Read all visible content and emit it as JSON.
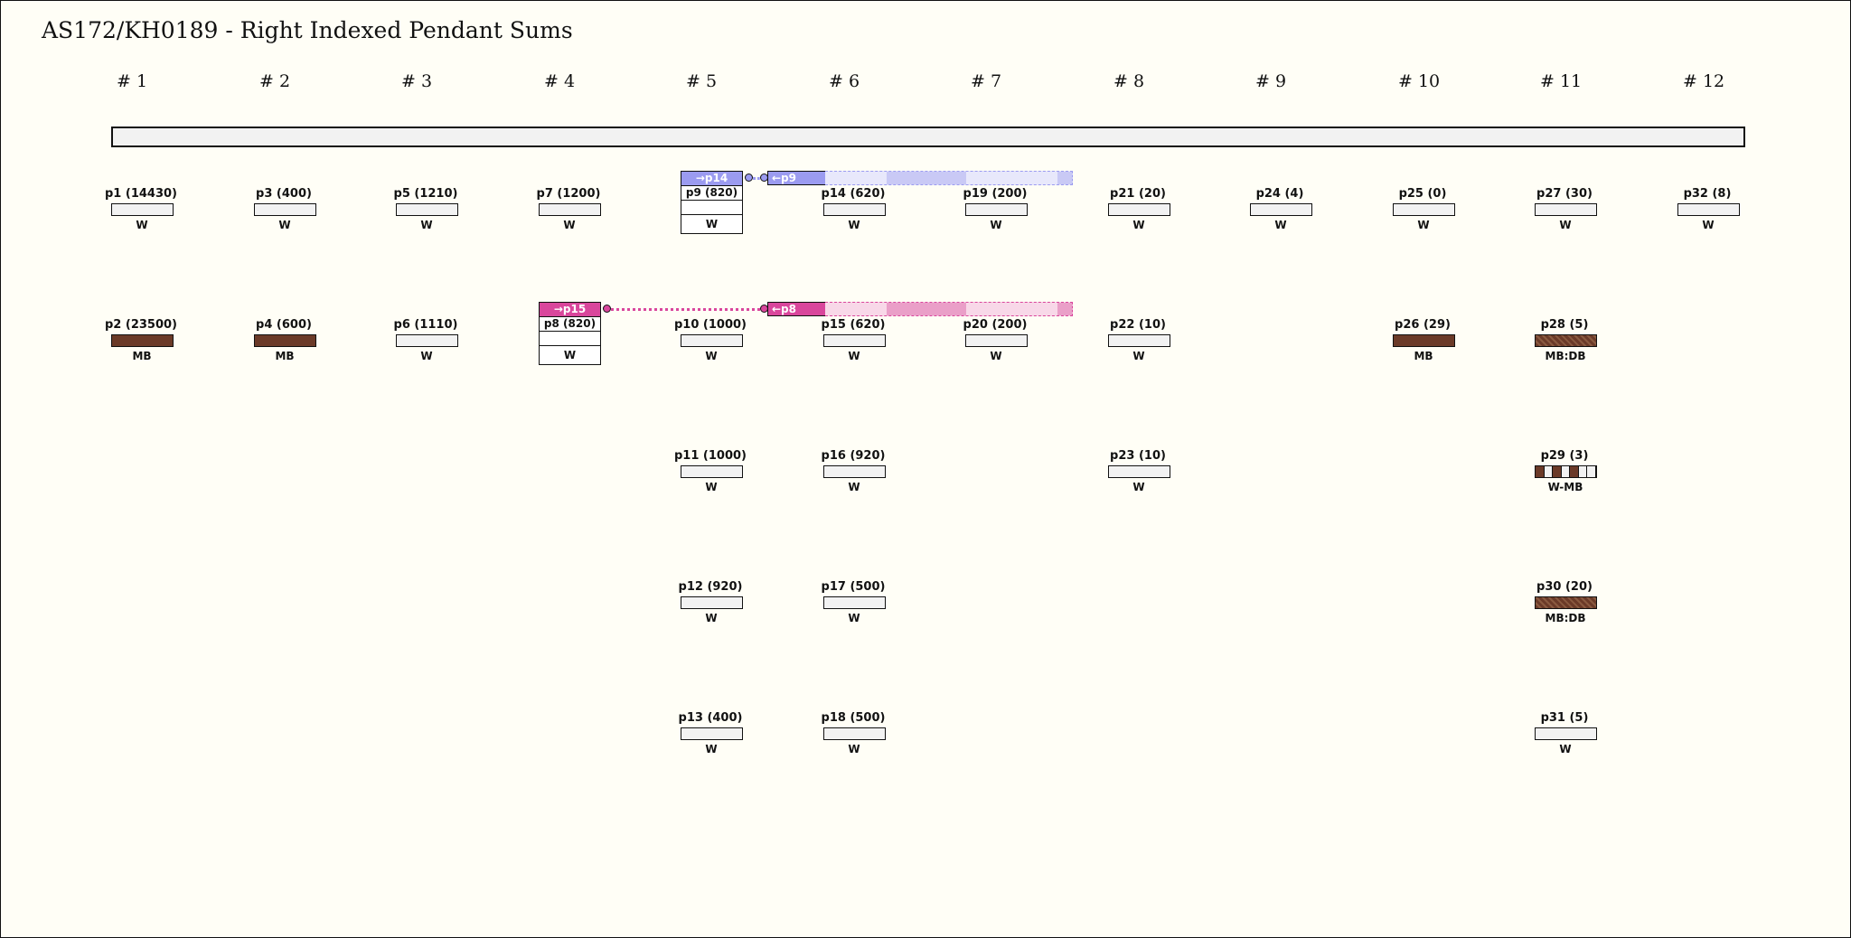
{
  "title": "AS172/KH0189 - Right Indexed Pendant Sums",
  "colors": {
    "background": "#fffef6",
    "blue_tag": "#9b9bf0",
    "pink_tag": "#d9469c",
    "brown_mb": "#6b3a28"
  },
  "groups": [
    "# 1",
    "# 2",
    "# 3",
    "# 4",
    "# 5",
    "# 6",
    "# 7",
    "# 8",
    "# 9",
    "# 10",
    "# 11",
    "# 12"
  ],
  "pendants": [
    {
      "id": "p1",
      "label": "p1 (14430)",
      "color": "W",
      "group": 1,
      "row": 1,
      "type": "w"
    },
    {
      "id": "p2",
      "label": "p2 (23500)",
      "color": "MB",
      "group": 1,
      "row": 2,
      "type": "mb"
    },
    {
      "id": "p3",
      "label": "p3 (400)",
      "color": "W",
      "group": 2,
      "row": 1,
      "type": "w"
    },
    {
      "id": "p4",
      "label": "p4 (600)",
      "color": "MB",
      "group": 2,
      "row": 2,
      "type": "mb"
    },
    {
      "id": "p5",
      "label": "p5 (1210)",
      "color": "W",
      "group": 3,
      "row": 1,
      "type": "w"
    },
    {
      "id": "p6",
      "label": "p6 (1110)",
      "color": "W",
      "group": 3,
      "row": 2,
      "type": "w"
    },
    {
      "id": "p7",
      "label": "p7 (1200)",
      "color": "W",
      "group": 4,
      "row": 1,
      "type": "w"
    },
    {
      "id": "p10",
      "label": "p10 (1000)",
      "color": "W",
      "group": 5,
      "row": 2,
      "type": "w"
    },
    {
      "id": "p11",
      "label": "p11 (1000)",
      "color": "W",
      "group": 5,
      "row": 3,
      "type": "w"
    },
    {
      "id": "p12",
      "label": "p12 (920)",
      "color": "W",
      "group": 5,
      "row": 4,
      "type": "w"
    },
    {
      "id": "p13",
      "label": "p13 (400)",
      "color": "W",
      "group": 5,
      "row": 5,
      "type": "w"
    },
    {
      "id": "p14",
      "label": "p14 (620)",
      "color": "W",
      "group": 6,
      "row": 1,
      "type": "w"
    },
    {
      "id": "p15",
      "label": "p15 (620)",
      "color": "W",
      "group": 6,
      "row": 2,
      "type": "w"
    },
    {
      "id": "p16",
      "label": "p16 (920)",
      "color": "W",
      "group": 6,
      "row": 3,
      "type": "w"
    },
    {
      "id": "p17",
      "label": "p17 (500)",
      "color": "W",
      "group": 6,
      "row": 4,
      "type": "w"
    },
    {
      "id": "p18",
      "label": "p18 (500)",
      "color": "W",
      "group": 6,
      "row": 5,
      "type": "w"
    },
    {
      "id": "p19",
      "label": "p19 (200)",
      "color": "W",
      "group": 7,
      "row": 1,
      "type": "w"
    },
    {
      "id": "p20",
      "label": "p20 (200)",
      "color": "W",
      "group": 7,
      "row": 2,
      "type": "w"
    },
    {
      "id": "p21",
      "label": "p21 (20)",
      "color": "W",
      "group": 8,
      "row": 1,
      "type": "w"
    },
    {
      "id": "p22",
      "label": "p22 (10)",
      "color": "W",
      "group": 8,
      "row": 2,
      "type": "w"
    },
    {
      "id": "p23",
      "label": "p23 (10)",
      "color": "W",
      "group": 8,
      "row": 3,
      "type": "w"
    },
    {
      "id": "p24",
      "label": "p24 (4)",
      "color": "W",
      "group": 9,
      "row": 1,
      "type": "w"
    },
    {
      "id": "p25",
      "label": "p25 (0)",
      "color": "W",
      "group": 10,
      "row": 1,
      "type": "w"
    },
    {
      "id": "p26",
      "label": "p26 (29)",
      "color": "MB",
      "group": 10,
      "row": 2,
      "type": "mb"
    },
    {
      "id": "p27",
      "label": "p27 (30)",
      "color": "W",
      "group": 11,
      "row": 1,
      "type": "w"
    },
    {
      "id": "p28",
      "label": "p28 (5)",
      "color": "MB:DB",
      "group": 11,
      "row": 2,
      "type": "mbdb"
    },
    {
      "id": "p29",
      "label": "p29 (3)",
      "color": "W-MB",
      "group": 11,
      "row": 3,
      "type": "wmb"
    },
    {
      "id": "p30",
      "label": "p30 (20)",
      "color": "MB:DB",
      "group": 11,
      "row": 4,
      "type": "mbdb"
    },
    {
      "id": "p31",
      "label": "p31 (5)",
      "color": "W",
      "group": 11,
      "row": 5,
      "type": "w"
    },
    {
      "id": "p32",
      "label": "p32 (8)",
      "color": "W",
      "group": 12,
      "row": 1,
      "type": "w"
    }
  ],
  "sum_pendants": [
    {
      "id": "p9",
      "label": "p9 (820)",
      "color": "W",
      "group": 5,
      "row": 1,
      "tag": "→p14",
      "tag_color": "#9b9bf0"
    },
    {
      "id": "p8",
      "label": "p8 (820)",
      "color": "W",
      "group": 4,
      "row": 2,
      "tag": "→p15",
      "tag_color": "#d9469c"
    }
  ],
  "index_tags": [
    {
      "label": "←p9",
      "group": 6,
      "row": 1,
      "color": "#9b9bf0",
      "band_light": "#e8e8fb",
      "band_mid": "#c9c9f5",
      "band_edge": "#9b9bf0"
    },
    {
      "label": "←p8",
      "group": 6,
      "row": 2,
      "color": "#d9469c",
      "band_light": "#f8d8e8",
      "band_mid": "#ea9fc8",
      "band_edge": "#d9469c"
    }
  ]
}
